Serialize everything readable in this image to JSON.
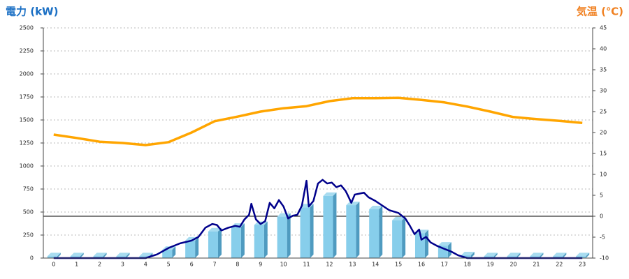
{
  "chart_data": {
    "type": "bar",
    "y_title": "電力 (kW)",
    "y2_title": "気温 (℃)",
    "categories": [
      "0",
      "1",
      "2",
      "3",
      "4",
      "5",
      "6",
      "7",
      "8",
      "9",
      "10",
      "11",
      "12",
      "13",
      "14",
      "15",
      "16",
      "17",
      "18",
      "19",
      "20",
      "21",
      "22",
      "23"
    ],
    "xlim": [
      -0.45,
      23.45
    ],
    "ylim": [
      0,
      2500
    ],
    "yticks": [
      0,
      250,
      500,
      750,
      1000,
      1250,
      1500,
      1750,
      2000,
      2250,
      2500
    ],
    "y2lim": [
      -10,
      45
    ],
    "y2ticks": [
      -10,
      -5,
      0,
      5,
      10,
      15,
      20,
      25,
      30,
      35,
      40,
      45
    ],
    "grid": true,
    "series": [
      {
        "type": "bar",
        "color": "#87ceeb",
        "values": [
          20,
          20,
          20,
          20,
          20,
          90,
          190,
          290,
          340,
          360,
          450,
          550,
          675,
          575,
          530,
          410,
          270,
          135,
          30,
          20,
          20,
          20,
          20,
          20
        ]
      },
      {
        "type": "line",
        "color": "#00008b",
        "x": [
          0,
          4,
          4.5,
          5,
          5.5,
          6,
          6.3,
          6.6,
          6.9,
          7.1,
          7.3,
          7.6,
          7.9,
          8.1,
          8.3,
          8.5,
          8.6,
          8.8,
          9.0,
          9.2,
          9.4,
          9.6,
          9.8,
          10,
          10.2,
          10.4,
          10.6,
          10.8,
          11,
          11.1,
          11.3,
          11.5,
          11.7,
          11.9,
          12.1,
          12.3,
          12.5,
          12.7,
          12.8,
          12.95,
          13.1,
          13.3,
          13.5,
          13.7,
          14,
          14.3,
          14.6,
          15,
          15.3,
          15.5,
          15.7,
          15.9,
          16,
          16.2,
          16.4,
          16.7,
          17,
          17.3,
          17.6,
          18,
          23
        ],
        "values": [
          0,
          0,
          40,
          110,
          160,
          190,
          230,
          330,
          370,
          360,
          300,
          330,
          350,
          340,
          420,
          470,
          590,
          420,
          370,
          400,
          600,
          540,
          630,
          560,
          430,
          460,
          470,
          570,
          840,
          560,
          620,
          810,
          850,
          810,
          820,
          770,
          790,
          730,
          680,
          600,
          690,
          700,
          710,
          660,
          620,
          570,
          520,
          490,
          430,
          350,
          260,
          310,
          200,
          230,
          170,
          130,
          100,
          70,
          30,
          0,
          0
        ]
      },
      {
        "type": "line",
        "axis": "y2",
        "color": "#ffa500",
        "values": [
          19.5,
          18.7,
          17.8,
          17.5,
          17,
          17.7,
          20,
          22.7,
          23.8,
          25,
          25.8,
          26.3,
          27.5,
          28.2,
          28.2,
          28.3,
          27.8,
          27.2,
          26.2,
          25,
          23.7,
          23.2,
          22.8,
          22.3
        ]
      }
    ]
  }
}
